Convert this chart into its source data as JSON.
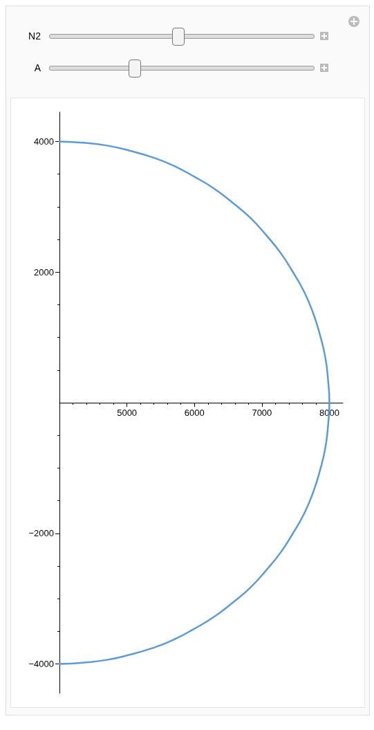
{
  "chart_data": {
    "type": "line",
    "annotations": [
      "N2",
      "A"
    ],
    "x": [
      4000,
      4350,
      4690,
      5040,
      5370,
      5690,
      6000,
      6290,
      6570,
      6830,
      7060,
      7280,
      7460,
      7630,
      7760,
      7860,
      7940,
      7980,
      8000,
      7980,
      7940,
      7860,
      7760,
      7630,
      7460,
      7280,
      7060,
      6830,
      6570,
      6290,
      6000,
      5690,
      5370,
      5040,
      4690,
      4350,
      4000
    ],
    "series": [
      {
        "color": "#5b9bd8",
        "values": [
          4000,
          3980,
          3940,
          3860,
          3760,
          3630,
          3460,
          3280,
          3060,
          2830,
          2570,
          2290,
          2000,
          1690,
          1370,
          1040,
          690,
          350,
          0,
          -350,
          -690,
          -1040,
          -1370,
          -1690,
          -2000,
          -2290,
          -2570,
          -2830,
          -3060,
          -3280,
          -3460,
          -3630,
          -3760,
          -3860,
          -3940,
          -3980,
          -4000
        ]
      }
    ],
    "xlim": [
      4000,
      8200
    ],
    "xticks": [
      5000,
      6000,
      7000,
      8000
    ],
    "ylim": [
      -4450,
      4450
    ],
    "yticks": [
      {
        "value": -4000,
        "label": "−4000"
      },
      {
        "value": -2000,
        "label": "−2000"
      },
      2000,
      4000
    ],
    "grid": false,
    "marker": "none",
    "line_style": "solid"
  }
}
